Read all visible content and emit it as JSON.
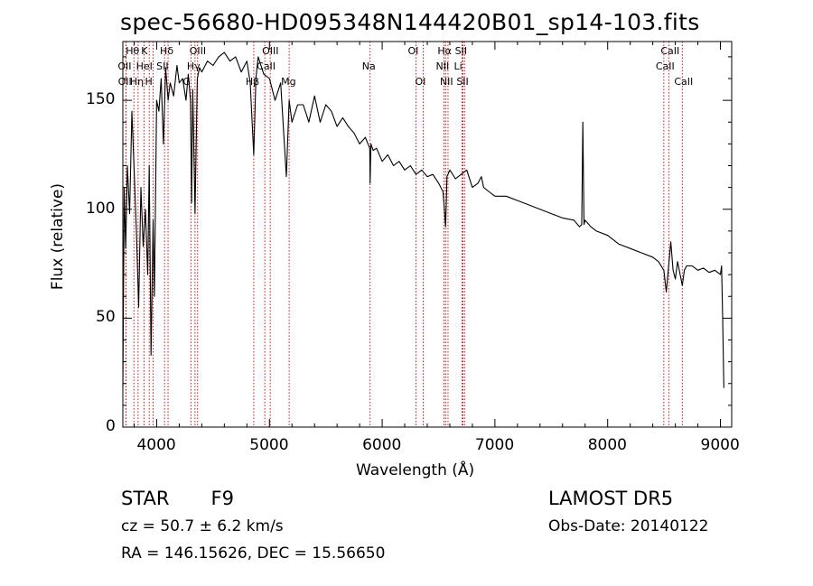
{
  "chart_data": {
    "type": "line",
    "title": "spec-56680-HD095348N144420B01_sp14-103.fits",
    "xlabel": "Wavelength (Å)",
    "ylabel": "Flux (relative)",
    "xlim": [
      3700,
      9100
    ],
    "ylim": [
      0,
      177
    ],
    "xticks": [
      4000,
      5000,
      6000,
      7000,
      8000,
      9000
    ],
    "yticks": [
      0,
      50,
      100,
      150
    ],
    "grid": false,
    "colors": {
      "spectrum": "#000000",
      "lines": "#cc0000"
    },
    "series": [
      {
        "x": [
          3700,
          3712,
          3725,
          3740,
          3760,
          3780,
          3800,
          3820,
          3840,
          3860,
          3880,
          3900,
          3920,
          3934,
          3950,
          3968,
          3980,
          4000,
          4020,
          4040,
          4060,
          4080,
          4101,
          4120,
          4150,
          4180,
          4200,
          4230,
          4260,
          4280,
          4300,
          4310,
          4320,
          4340,
          4360,
          4380,
          4400,
          4450,
          4500,
          4550,
          4600,
          4650,
          4700,
          4750,
          4800,
          4830,
          4861,
          4880,
          4900,
          4950,
          5000,
          5050,
          5100,
          5150,
          5175,
          5200,
          5250,
          5300,
          5350,
          5400,
          5450,
          5500,
          5550,
          5600,
          5650,
          5700,
          5750,
          5800,
          5850,
          5890,
          5893,
          5900,
          5920,
          5950,
          6000,
          6050,
          6100,
          6150,
          6200,
          6250,
          6300,
          6350,
          6400,
          6450,
          6500,
          6540,
          6563,
          6575,
          6600,
          6650,
          6700,
          6750,
          6800,
          6850,
          6880,
          6900,
          6950,
          7000,
          7100,
          7200,
          7300,
          7400,
          7500,
          7600,
          7700,
          7750,
          7770,
          7780,
          7790,
          7800,
          7850,
          7900,
          8000,
          8100,
          8200,
          8300,
          8400,
          8450,
          8498,
          8520,
          8542,
          8560,
          8580,
          8600,
          8620,
          8662,
          8680,
          8700,
          8750,
          8800,
          8850,
          8900,
          8950,
          9000,
          9010,
          9020,
          9030
        ],
        "y": [
          18,
          110,
          82,
          120,
          98,
          145,
          118,
          90,
          55,
          110,
          83,
          100,
          70,
          120,
          33,
          95,
          60,
          150,
          145,
          160,
          130,
          165,
          150,
          158,
          152,
          166,
          158,
          160,
          150,
          162,
          150,
          103,
          155,
          98,
          160,
          165,
          163,
          168,
          166,
          170,
          172,
          168,
          170,
          163,
          168,
          158,
          125,
          160,
          170,
          162,
          160,
          150,
          158,
          115,
          150,
          140,
          148,
          148,
          140,
          152,
          140,
          148,
          145,
          138,
          142,
          138,
          135,
          130,
          133,
          128,
          112,
          130,
          127,
          128,
          122,
          125,
          120,
          122,
          118,
          120,
          116,
          118,
          115,
          116,
          112,
          108,
          92,
          115,
          118,
          114,
          116,
          118,
          110,
          112,
          115,
          110,
          108,
          106,
          106,
          104,
          102,
          100,
          98,
          96,
          95,
          92,
          93,
          140,
          93,
          95,
          92,
          90,
          88,
          84,
          82,
          80,
          78,
          76,
          72,
          62,
          75,
          85,
          72,
          68,
          76,
          65,
          72,
          74,
          74,
          72,
          73,
          71,
          72,
          70,
          74,
          50,
          18
        ]
      }
    ],
    "line_markers": [
      {
        "label": "Hθ",
        "x": 3798,
        "row": 1
      },
      {
        "label": "OII",
        "x": 3727,
        "row": 2
      },
      {
        "label": "OII",
        "x": 3729,
        "row": 3
      },
      {
        "label": "K",
        "x": 3934,
        "row": 1
      },
      {
        "label": "HeI",
        "x": 3889,
        "row": 2
      },
      {
        "label": "Hη",
        "x": 3835,
        "row": 3
      },
      {
        "label": "Hδ",
        "x": 4101,
        "row": 1
      },
      {
        "label": "SII",
        "x": 4070,
        "row": 2
      },
      {
        "label": "H",
        "x": 3968,
        "row": 3
      },
      {
        "label": "OIII",
        "x": 4363,
        "row": 1
      },
      {
        "label": "Hγ",
        "x": 4340,
        "row": 2
      },
      {
        "label": "G",
        "x": 4304,
        "row": 3
      },
      {
        "label": "OIII",
        "x": 5007,
        "row": 1
      },
      {
        "label": "CaII",
        "x": 4959,
        "row": 2
      },
      {
        "label": "Hβ",
        "x": 4861,
        "row": 3
      },
      {
        "label": "Mg",
        "x": 5175,
        "row": 3
      },
      {
        "label": "Na",
        "x": 5893,
        "row": 2
      },
      {
        "label": "OI",
        "x": 6300,
        "row": 1
      },
      {
        "label": "OI",
        "x": 6364,
        "row": 3
      },
      {
        "label": "Hα",
        "x": 6563,
        "row": 1
      },
      {
        "label": "NII",
        "x": 6548,
        "row": 2
      },
      {
        "label": "NII",
        "x": 6584,
        "row": 3
      },
      {
        "label": "SII",
        "x": 6717,
        "row": 1
      },
      {
        "label": "Li",
        "x": 6708,
        "row": 2
      },
      {
        "label": "SII",
        "x": 6731,
        "row": 3
      },
      {
        "label": "CaII",
        "x": 8542,
        "row": 1
      },
      {
        "label": "CaII",
        "x": 8498,
        "row": 2
      },
      {
        "label": "CaII",
        "x": 8662,
        "row": 3
      }
    ]
  },
  "info": {
    "object_class": "STAR",
    "subclass": "F9",
    "survey": "LAMOST DR5",
    "cz": "cz = 50.7 ± 6.2 km/s",
    "obs_date": "Obs-Date: 20140122",
    "coords": "RA = 146.15626, DEC =  15.56650"
  }
}
